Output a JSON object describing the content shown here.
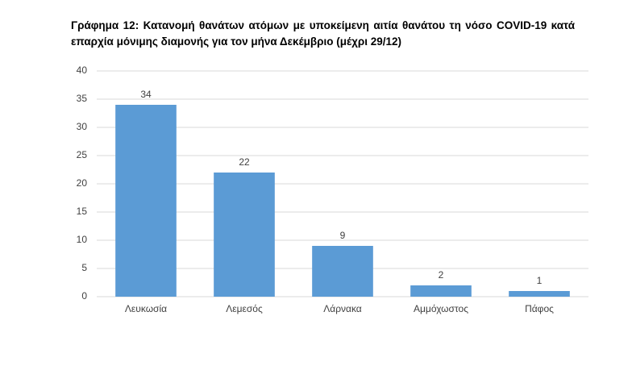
{
  "chart_data": {
    "type": "bar",
    "title": "Γράφημα 12: Κατανομή θανάτων ατόμων με υποκείμενη αιτία θανάτου τη νόσο COVID-19 κατά επαρχία μόνιμης διαμονής για τον μήνα Δεκέμβριο (μέχρι 29/12)",
    "categories": [
      "Λευκωσία",
      "Λεμεσός",
      "Λάρνακα",
      "Αμμόχωστος",
      "Πάφος"
    ],
    "values": [
      34,
      22,
      9,
      2,
      1
    ],
    "color": "#5b9bd5",
    "ylim": [
      0,
      40
    ],
    "yticks": [
      0,
      5,
      10,
      15,
      20,
      25,
      30,
      35,
      40
    ],
    "grid": true
  }
}
